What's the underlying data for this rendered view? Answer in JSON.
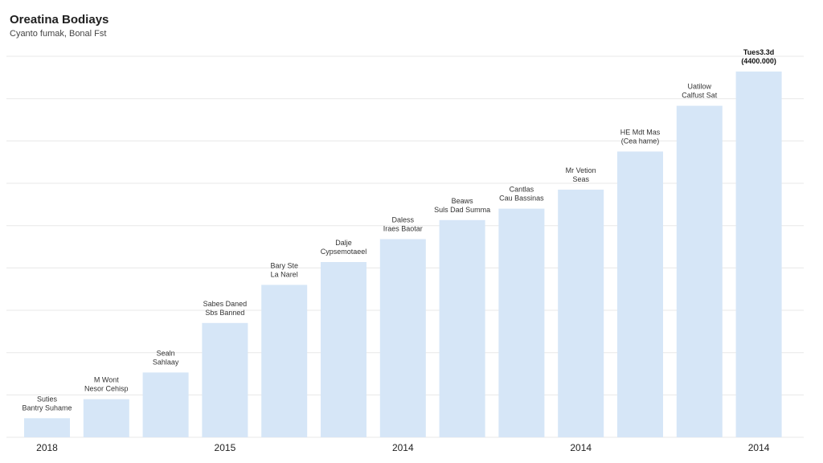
{
  "chart_data": {
    "type": "bar",
    "title": "Oreatina Bodiays",
    "subtitle": "Cyanto fumak, Bonal Fst",
    "xlabel": "",
    "ylabel": "",
    "ylim": [
      0,
      100
    ],
    "grid": true,
    "bar_color": "#d6e6f7",
    "grid_color": "#e8e8e8",
    "tick_labels": [
      {
        "label": "2018",
        "index": 0
      },
      {
        "label": "2015",
        "index": 3
      },
      {
        "label": "2014",
        "index": 6
      },
      {
        "label": "2014",
        "index": 9
      },
      {
        "label": "2014",
        "index": 12
      }
    ],
    "values": [
      5,
      10,
      17,
      30,
      40,
      46,
      52,
      57,
      60,
      65,
      75,
      87,
      96
    ],
    "annotations": [
      {
        "index": 0,
        "lines": [
          "Suties",
          "Bantry Suhame"
        ]
      },
      {
        "index": 1,
        "lines": [
          "M Wont",
          "Nesor Cehisp"
        ]
      },
      {
        "index": 2,
        "lines": [
          "Sealn",
          "Sahlaay"
        ]
      },
      {
        "index": 3,
        "lines": [
          "Sabes Daned",
          "Sbs Banned"
        ]
      },
      {
        "index": 4,
        "lines": [
          "Bary Ste",
          "La Narel"
        ]
      },
      {
        "index": 5,
        "lines": [
          "Dalje",
          "Cypsemotaeel"
        ]
      },
      {
        "index": 6,
        "lines": [
          "Daless",
          "Iraes Baotar"
        ]
      },
      {
        "index": 7,
        "lines": [
          "Beaws",
          "Suls Dad Summa"
        ]
      },
      {
        "index": 8,
        "lines": [
          "Cantlas",
          "Cau Bassinas"
        ]
      },
      {
        "index": 9,
        "lines": [
          "Mr Vetion",
          "Seas"
        ]
      },
      {
        "index": 10,
        "lines": [
          "HE Mdt Mas",
          "(Cea hame)"
        ]
      },
      {
        "index": 11,
        "lines": [
          "Uatilow",
          "Calfust Sat"
        ]
      },
      {
        "index": 12,
        "lines": [
          "Tues3.3d",
          "(4400.000)"
        ],
        "bold": true
      }
    ]
  }
}
